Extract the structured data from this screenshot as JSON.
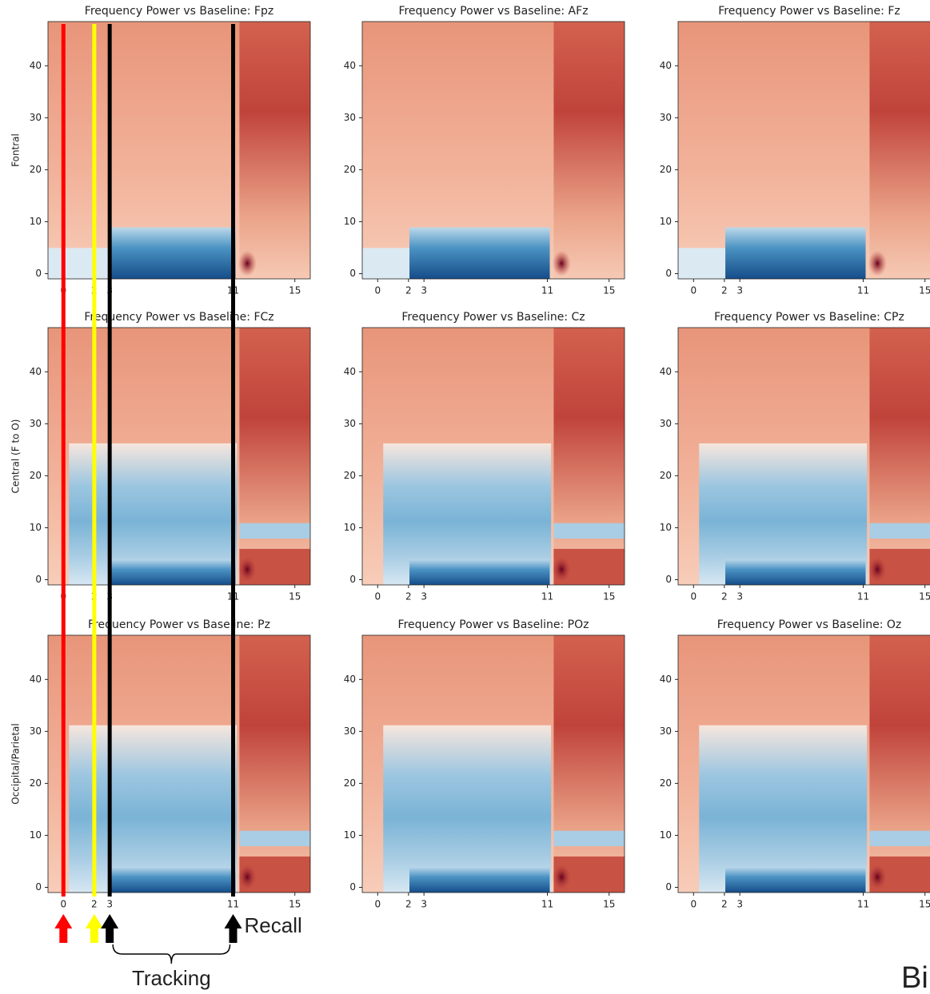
{
  "chart_data": [
    {
      "type": "heatmap",
      "title": "Frequency Power vs Baseline: Fpz",
      "ylabel": "Fontral",
      "xlim": [
        -1,
        16
      ],
      "ylim": [
        -1,
        48.5
      ],
      "xticks": [
        0,
        2,
        3,
        11,
        15
      ],
      "yticks": [
        0,
        10,
        20,
        30,
        40
      ]
    },
    {
      "type": "heatmap",
      "title": "Frequency Power vs Baseline: AFz",
      "xlim": [
        -1,
        16
      ],
      "ylim": [
        -1,
        48.5
      ],
      "xticks": [
        0,
        2,
        3,
        11,
        15
      ],
      "yticks": [
        0,
        10,
        20,
        30,
        40
      ]
    },
    {
      "type": "heatmap",
      "title": "Frequency Power vs Baseline: Fz",
      "xlim": [
        -1,
        16
      ],
      "ylim": [
        -1,
        48.5
      ],
      "xticks": [
        0,
        2,
        3,
        11,
        15
      ],
      "yticks": [
        0,
        10,
        20,
        30,
        40
      ]
    },
    {
      "type": "heatmap",
      "title": "Frequency Power vs Baseline: FCz",
      "ylabel": "Central (F to O)",
      "xlim": [
        -1,
        16
      ],
      "ylim": [
        -1,
        48.5
      ],
      "xticks": [
        0,
        2,
        3,
        11,
        15
      ],
      "yticks": [
        0,
        10,
        20,
        30,
        40
      ]
    },
    {
      "type": "heatmap",
      "title": "Frequency Power vs Baseline: Cz",
      "xlim": [
        -1,
        16
      ],
      "ylim": [
        -1,
        48.5
      ],
      "xticks": [
        0,
        2,
        3,
        11,
        15
      ],
      "yticks": [
        0,
        10,
        20,
        30,
        40
      ]
    },
    {
      "type": "heatmap",
      "title": "Frequency Power vs Baseline: CPz",
      "xlim": [
        -1,
        16
      ],
      "ylim": [
        -1,
        48.5
      ],
      "xticks": [
        0,
        2,
        3,
        11,
        15
      ],
      "yticks": [
        0,
        10,
        20,
        30,
        40
      ]
    },
    {
      "type": "heatmap",
      "title": "Frequency Power vs Baseline: Pz",
      "ylabel": "Occipital/Parietal",
      "xlim": [
        -1,
        16
      ],
      "ylim": [
        -1,
        48.5
      ],
      "xticks": [
        0,
        2,
        3,
        11,
        15
      ],
      "yticks": [
        0,
        10,
        20,
        30,
        40
      ]
    },
    {
      "type": "heatmap",
      "title": "Frequency Power vs Baseline: POz",
      "xlim": [
        -1,
        16
      ],
      "ylim": [
        -1,
        48.5
      ],
      "xticks": [
        0,
        2,
        3,
        11,
        15
      ],
      "yticks": [
        0,
        10,
        20,
        30,
        40
      ]
    },
    {
      "type": "heatmap",
      "title": "Frequency Power vs Baseline: Oz",
      "xlim": [
        -1,
        16
      ],
      "ylim": [
        -1,
        48.5
      ],
      "xticks": [
        0,
        2,
        3,
        11,
        15
      ],
      "yticks": [
        0,
        10,
        20,
        30,
        40
      ]
    }
  ],
  "markers": [
    {
      "x": 0,
      "color": "#ff0000"
    },
    {
      "x": 2,
      "color": "#ffff00"
    },
    {
      "x": 3,
      "color": "#000000"
    },
    {
      "x": 11,
      "color": "#000000"
    }
  ],
  "annotations": {
    "recall": "Recall",
    "tracking": "Tracking"
  },
  "panel_label": "Bi"
}
